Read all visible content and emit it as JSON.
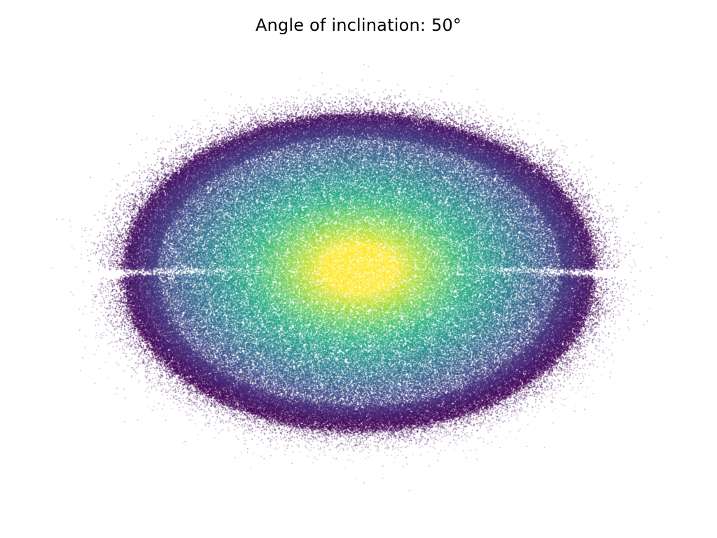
{
  "title": "Angle of inclination: 50°",
  "colormap": "viridis",
  "background": "#ffffff"
}
